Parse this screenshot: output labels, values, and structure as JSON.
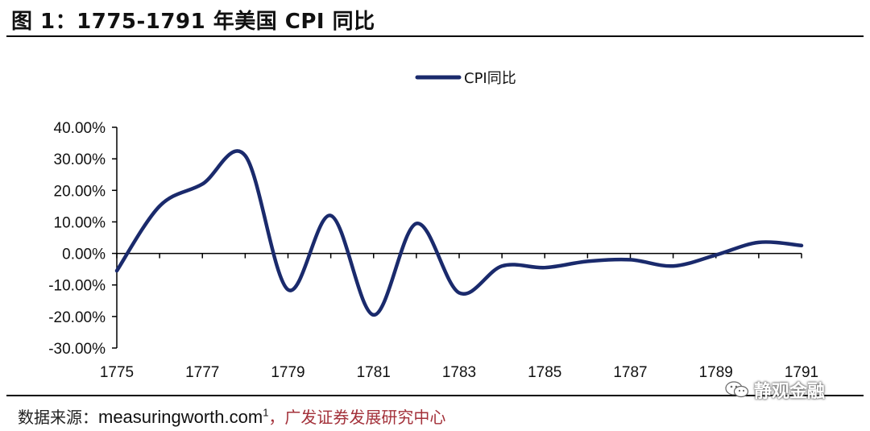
{
  "figure": {
    "title": "图 1：1775-1791 年美国 CPI 同比"
  },
  "source": {
    "label": "数据来源：",
    "site": "measuringworth.com",
    "footnote": "1",
    "sep": "，",
    "org": "广发证券发展研究中心"
  },
  "watermark": {
    "text": "静观金融",
    "icon": "wechat-icon"
  },
  "chart_data": {
    "type": "line",
    "title": "",
    "xlabel": "",
    "ylabel": "",
    "x": [
      1775,
      1776,
      1777,
      1778,
      1779,
      1780,
      1781,
      1782,
      1783,
      1784,
      1785,
      1786,
      1787,
      1788,
      1789,
      1790,
      1791
    ],
    "series": [
      {
        "name": "CPI同比",
        "color": "#1a2a6c",
        "values": [
          -5.5,
          15.0,
          22.0,
          31.0,
          -11.5,
          12.0,
          -19.5,
          9.5,
          -12.5,
          -4.0,
          -4.5,
          -2.5,
          -2.0,
          -4.0,
          -0.5,
          3.5,
          2.5
        ]
      }
    ],
    "xlim": [
      1775,
      1791
    ],
    "ylim": [
      -30,
      40
    ],
    "x_ticks": [
      "1775",
      "1777",
      "1779",
      "1781",
      "1783",
      "1785",
      "1787",
      "1789",
      "1791"
    ],
    "y_ticks": [
      "40.00%",
      "30.00%",
      "20.00%",
      "10.00%",
      "0.00%",
      "-10.00%",
      "-20.00%",
      "-30.00%"
    ],
    "grid": false,
    "legend_position": "top-center",
    "smooth": true
  }
}
